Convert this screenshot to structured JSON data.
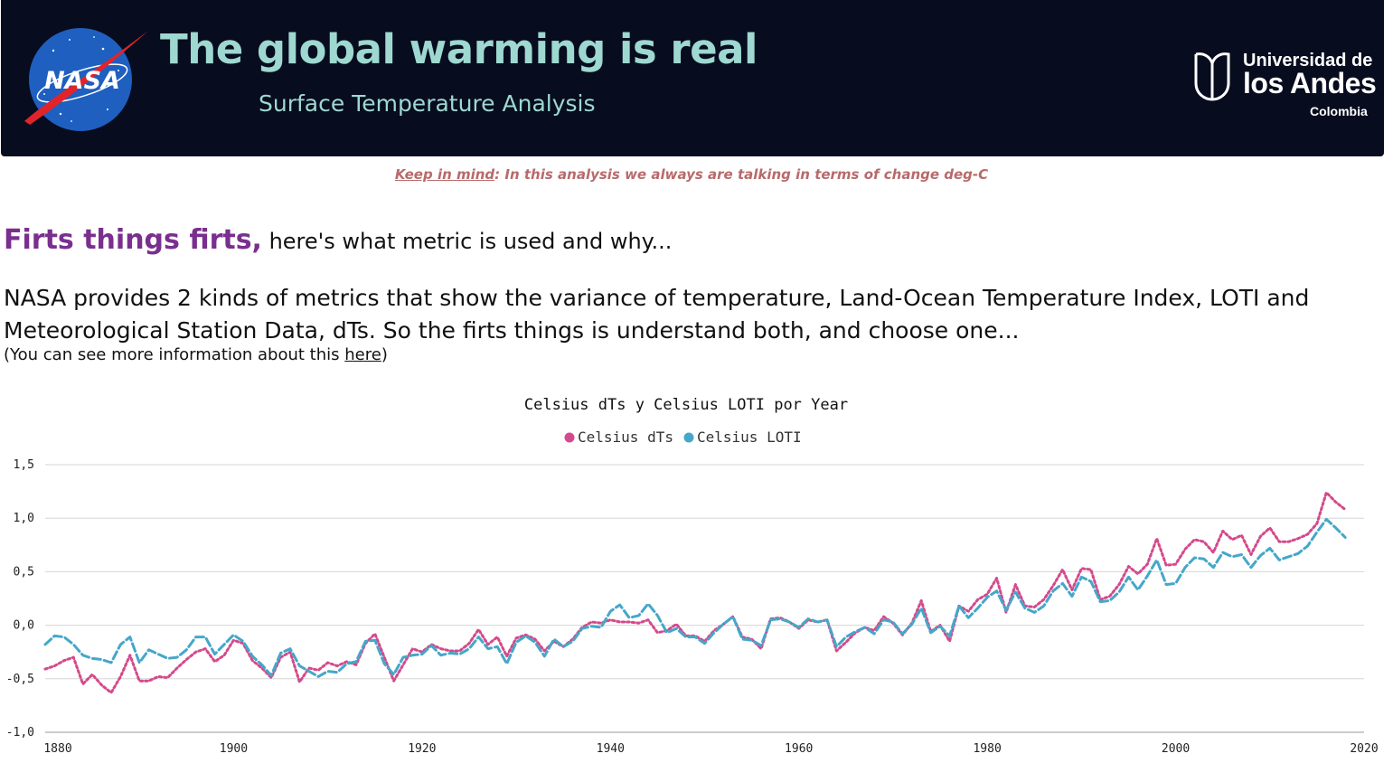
{
  "header": {
    "title": "The global warming is real",
    "subtitle": "Surface Temperature Analysis",
    "nasa_logo_text": "NASA",
    "uni_line1": "Universidad de",
    "uni_line2": "los Andes",
    "uni_line3": "Colombia"
  },
  "note": {
    "keyword": "Keep in mind",
    "text": ": In this analysis we always are talking in terms of change deg-C"
  },
  "intro": {
    "highlight": "Firts things firts,",
    "rest": " here's what metric is used and why...",
    "paragraph": "NASA provides 2 kinds of metrics that show the variance of temperature, Land-Ocean Temperature Index, LOTI and Meteorological Station Data, dTs. So the firts things is understand both, and choose one...",
    "more_prefix": "(You can see more information about this ",
    "more_link": "here",
    "more_suffix": ")"
  },
  "colors": {
    "header_bg": "#070c1f",
    "title": "#9ed8d0",
    "dts": "#d44a8c",
    "loti": "#45a7c9",
    "heading_accent": "#7a2f8f",
    "note": "#b86a6a"
  },
  "chart_data": {
    "type": "line",
    "title": "Celsius dTs y Celsius LOTI por Year",
    "xlabel": "",
    "ylabel": "",
    "xlim": [
      1880,
      2020
    ],
    "ylim": [
      -1.0,
      1.5
    ],
    "x_ticks": [
      "1880",
      "1900",
      "1920",
      "1940",
      "1960",
      "1980",
      "2000",
      "2020"
    ],
    "y_ticks": [
      "1,5",
      "1,0",
      "0,5",
      "0,0",
      "-0,5",
      "-1,0"
    ],
    "legend_position": "top-center",
    "grid": true,
    "x": [
      1880,
      1881,
      1882,
      1883,
      1884,
      1885,
      1886,
      1887,
      1888,
      1889,
      1890,
      1891,
      1892,
      1893,
      1894,
      1895,
      1896,
      1897,
      1898,
      1899,
      1900,
      1901,
      1902,
      1903,
      1904,
      1905,
      1906,
      1907,
      1908,
      1909,
      1910,
      1911,
      1912,
      1913,
      1914,
      1915,
      1916,
      1917,
      1918,
      1919,
      1920,
      1921,
      1922,
      1923,
      1924,
      1925,
      1926,
      1927,
      1928,
      1929,
      1930,
      1931,
      1932,
      1933,
      1934,
      1935,
      1936,
      1937,
      1938,
      1939,
      1940,
      1941,
      1942,
      1943,
      1944,
      1945,
      1946,
      1947,
      1948,
      1949,
      1950,
      1951,
      1952,
      1953,
      1954,
      1955,
      1956,
      1957,
      1958,
      1959,
      1960,
      1961,
      1962,
      1963,
      1964,
      1965,
      1966,
      1967,
      1968,
      1969,
      1970,
      1971,
      1972,
      1973,
      1974,
      1975,
      1976,
      1977,
      1978,
      1979,
      1980,
      1981,
      1982,
      1983,
      1984,
      1985,
      1986,
      1987,
      1988,
      1989,
      1990,
      1991,
      1992,
      1993,
      1994,
      1995,
      1996,
      1997,
      1998,
      1999,
      2000,
      2001,
      2002,
      2003,
      2004,
      2005,
      2006,
      2007,
      2008,
      2009,
      2010,
      2011,
      2012,
      2013,
      2014,
      2015,
      2016,
      2017,
      2018
    ],
    "series": [
      {
        "name": "Celsius dTs",
        "color": "#d44a8c",
        "style": "dotted",
        "values": [
          -0.41,
          -0.38,
          -0.33,
          -0.3,
          -0.55,
          -0.46,
          -0.56,
          -0.63,
          -0.48,
          -0.28,
          -0.52,
          -0.52,
          -0.48,
          -0.49,
          -0.4,
          -0.32,
          -0.25,
          -0.22,
          -0.34,
          -0.28,
          -0.14,
          -0.17,
          -0.33,
          -0.4,
          -0.49,
          -0.3,
          -0.25,
          -0.53,
          -0.4,
          -0.42,
          -0.35,
          -0.38,
          -0.34,
          -0.37,
          -0.17,
          -0.08,
          -0.3,
          -0.52,
          -0.37,
          -0.22,
          -0.25,
          -0.18,
          -0.22,
          -0.24,
          -0.24,
          -0.17,
          -0.04,
          -0.18,
          -0.11,
          -0.29,
          -0.12,
          -0.09,
          -0.13,
          -0.24,
          -0.15,
          -0.2,
          -0.13,
          -0.02,
          0.03,
          0.02,
          0.05,
          0.03,
          0.03,
          0.02,
          0.05,
          -0.07,
          -0.05,
          0.01,
          -0.1,
          -0.1,
          -0.15,
          -0.05,
          0.01,
          0.08,
          -0.11,
          -0.13,
          -0.22,
          0.06,
          0.07,
          0.03,
          -0.03,
          0.05,
          0.03,
          0.05,
          -0.24,
          -0.16,
          -0.07,
          -0.02,
          -0.05,
          0.08,
          0.02,
          -0.09,
          0.02,
          0.23,
          -0.06,
          0.0,
          -0.15,
          0.18,
          0.13,
          0.24,
          0.29,
          0.44,
          0.12,
          0.38,
          0.18,
          0.17,
          0.24,
          0.37,
          0.52,
          0.33,
          0.53,
          0.52,
          0.24,
          0.27,
          0.38,
          0.55,
          0.48,
          0.57,
          0.81,
          0.56,
          0.57,
          0.71,
          0.8,
          0.78,
          0.68,
          0.88,
          0.8,
          0.84,
          0.66,
          0.83,
          0.91,
          0.78,
          0.78,
          0.81,
          0.85,
          0.95,
          1.24,
          1.15,
          1.08
        ]
      },
      {
        "name": "Celsius LOTI",
        "color": "#45a7c9",
        "style": "dashed",
        "values": [
          -0.18,
          -0.1,
          -0.11,
          -0.18,
          -0.28,
          -0.31,
          -0.32,
          -0.35,
          -0.18,
          -0.11,
          -0.35,
          -0.23,
          -0.27,
          -0.31,
          -0.3,
          -0.23,
          -0.11,
          -0.11,
          -0.27,
          -0.18,
          -0.09,
          -0.15,
          -0.29,
          -0.37,
          -0.47,
          -0.26,
          -0.22,
          -0.38,
          -0.43,
          -0.48,
          -0.43,
          -0.44,
          -0.36,
          -0.34,
          -0.15,
          -0.14,
          -0.36,
          -0.46,
          -0.3,
          -0.28,
          -0.27,
          -0.19,
          -0.28,
          -0.26,
          -0.27,
          -0.22,
          -0.11,
          -0.22,
          -0.2,
          -0.36,
          -0.16,
          -0.1,
          -0.16,
          -0.29,
          -0.13,
          -0.2,
          -0.15,
          -0.03,
          -0.01,
          -0.02,
          0.13,
          0.19,
          0.07,
          0.09,
          0.2,
          0.09,
          -0.07,
          -0.03,
          -0.11,
          -0.11,
          -0.17,
          -0.07,
          0.01,
          0.08,
          -0.13,
          -0.14,
          -0.19,
          0.05,
          0.06,
          0.03,
          -0.02,
          0.06,
          0.03,
          0.05,
          -0.2,
          -0.11,
          -0.06,
          -0.02,
          -0.08,
          0.05,
          0.03,
          -0.08,
          0.01,
          0.16,
          -0.07,
          -0.01,
          -0.1,
          0.18,
          0.07,
          0.16,
          0.26,
          0.32,
          0.14,
          0.31,
          0.16,
          0.12,
          0.18,
          0.32,
          0.39,
          0.27,
          0.45,
          0.41,
          0.22,
          0.23,
          0.31,
          0.45,
          0.33,
          0.46,
          0.61,
          0.38,
          0.39,
          0.54,
          0.63,
          0.62,
          0.54,
          0.68,
          0.64,
          0.66,
          0.54,
          0.65,
          0.72,
          0.61,
          0.64,
          0.67,
          0.74,
          0.87,
          0.99,
          0.91,
          0.82
        ]
      }
    ]
  }
}
